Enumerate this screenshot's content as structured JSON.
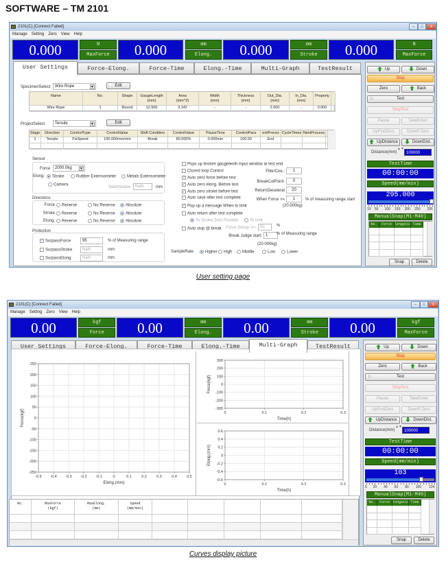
{
  "page_title": "SOFTWARE – TM 2101",
  "windows": [
    {
      "caption": "User setting page",
      "title": "2101(C)  [Connect Failed]",
      "menu": [
        "Manage",
        "Setting",
        "Zero",
        "View",
        "Help"
      ],
      "displays": [
        {
          "value": "0.000",
          "unit": "N",
          "label": "MaxForce"
        },
        {
          "value": "0.000",
          "unit": "mm",
          "label": "Elong."
        },
        {
          "value": "0.000",
          "unit": "mm",
          "label": "Stroke"
        },
        {
          "value": "0.000",
          "unit": "N",
          "label": "MaxForce"
        }
      ],
      "tabs": [
        "User Settings",
        "Force-Elong.",
        "Force-Time",
        "Elong.-Time",
        "Multi-Graph",
        "TestResult"
      ],
      "active_tab": "User Settings",
      "side": {
        "up": "Up",
        "down": "Down",
        "stop": "Stop",
        "zero": "Zero",
        "back": "Back",
        "test": "Test",
        "stop_test": "StopTest",
        "pause": "Pause",
        "take_exten": "TakeExten",
        "up_find_zero": "UpFindZero",
        "down_f_zero": "DownF.Zero",
        "up_distance": "UpDistance",
        "down_dist": "DownDist.",
        "distance_label": "Distance(mm)",
        "distance_value": "100000",
        "test_time_label": "TestTime",
        "test_time": "00:00:00",
        "speed_label": "Speed(mm/min)",
        "speed_value": "295.000",
        "speed_slider_fraction": 1.0,
        "speed_ticks": [
          "10",
          "50",
          "100",
          "150",
          "200",
          "250",
          "295"
        ],
        "snap_title": "ManualSnap(M1-M40)",
        "snap_columns": [
          "No.",
          "Force",
          "longatio",
          "Time"
        ],
        "snap": "Snap",
        "delete": "Delete"
      }
    },
    {
      "caption": "Curves display picture",
      "title": "2101(C)  [Connect Failed]",
      "menu": [
        "Manage",
        "Setting",
        "Zero",
        "View",
        "Help"
      ],
      "displays": [
        {
          "value": "0.00",
          "unit": "kgf",
          "label": "Force"
        },
        {
          "value": "0.00",
          "unit": "mm",
          "label": "Elong."
        },
        {
          "value": "0.00",
          "unit": "mm",
          "label": "Stroke"
        },
        {
          "value": "0.00",
          "unit": "kgf",
          "label": "MaxForce"
        }
      ],
      "tabs": [
        "User Settings",
        "Force-Elong.",
        "Force-Time",
        "Elong.-Time",
        "Multi-Graph",
        "TestResult"
      ],
      "active_tab": "Multi-Graph",
      "side": {
        "up": "Up",
        "down": "Down",
        "stop": "Stop",
        "zero": "Zero",
        "back": "Back",
        "test": "Test",
        "stop_test": "StopTest",
        "pause": "Pause",
        "take_exten": "TakeExten",
        "up_find_zero": "UpFindZero",
        "down_f_zero": "DownF.Zero",
        "up_distance": "UpDistance",
        "down_dist": "DownDist.",
        "distance_label": "Distance(mm)",
        "distance_value": "100000",
        "test_time_label": "TestTime",
        "test_time": "00:00:00",
        "speed_label": "Speed(mm/min)",
        "speed_value": "103",
        "speed_slider_fraction": 0.82,
        "speed_ticks": [
          "5",
          "20",
          "40",
          "60",
          "80",
          "100",
          "124"
        ],
        "snap_title": "ManualSnap(M1-M40)",
        "snap_columns": [
          "No.",
          "Force",
          "longatio",
          "Time"
        ],
        "snap": "Snap",
        "delete": "Delete"
      },
      "result_table": {
        "headers": [
          "No.",
          "MaxForce\n(kgf)",
          "MaxElong.\n(mm)",
          "Speed\n(mm/min)",
          "",
          "",
          "",
          "",
          ""
        ]
      }
    }
  ],
  "user_settings": {
    "specimen_label": "SpecimenSelect",
    "specimen_value": "Wire Rope",
    "edit": "Edit",
    "specimen_table": {
      "headers": [
        "Name",
        "No.",
        "Shape",
        "GaugeLength\n(mm)",
        "Area\n(mm^2)",
        "Width\n(mm)",
        "Thickness\n(mm)",
        "Out_Dia.\n(mm)",
        "In_Dia.\n(mm)",
        "Property"
      ],
      "rows": [
        [
          "Wire Rope",
          "1",
          "Round",
          "12.500",
          "3.142",
          "-",
          "-",
          "2.000",
          "-",
          "0.000"
        ]
      ]
    },
    "project_label": "ProjectSelect",
    "project_value": "Tensile",
    "project_table": {
      "headers": [
        "Stage",
        "Direction",
        "ControlType",
        "ControlValue",
        "Shift Condition",
        "ControlValue",
        "PauseTime",
        "ControlPara",
        "extProces",
        "CycleTimes",
        "NextProcess"
      ],
      "rows": [
        [
          "1",
          "Tensile",
          "FixSpeed",
          "100.000mm/min",
          "Break",
          "80.000%",
          "0.000min",
          "100.00",
          "End",
          "",
          ""
        ]
      ]
    },
    "sensor": {
      "title": "Sensor",
      "force_label": "Force",
      "force_value": "2000.0kg",
      "elong_label": "Elong.",
      "elong_options": [
        "Stroke",
        "Rubber Extensometer",
        "Metals Extensometer",
        "Camera"
      ],
      "elong_selected": "Stroke",
      "switch_label": "SwitchValue",
      "switch_value": "NaN",
      "switch_unit": "mm"
    },
    "directions": {
      "title": "Directions",
      "options": [
        "Reverse",
        "No Reverse",
        "Absolute"
      ],
      "rows": [
        {
          "label": "Force",
          "selected": "Absolute"
        },
        {
          "label": "Stroke",
          "selected": "Absolute"
        },
        {
          "label": "Elong.",
          "selected": "Absolute"
        }
      ]
    },
    "protection": {
      "title": "Protection",
      "rows": [
        {
          "label": "SurpassForce",
          "checked": true,
          "value": "95",
          "unit": "% of Measuring range"
        },
        {
          "label": "SurpassStroke",
          "checked": false,
          "value": "NaN",
          "unit": "mm"
        },
        {
          "label": "SurpassElong.",
          "checked": false,
          "value": "NaN",
          "unit": "mm"
        }
      ]
    },
    "options": [
      {
        "label": "Pops up broken gaugelenth input window at test end",
        "checked": false
      },
      {
        "label": "Closed loop Control",
        "checked": false
      },
      {
        "label": "Auto zero force before test",
        "checked": true
      },
      {
        "label": "Auto zero elong. Before test",
        "checked": true
      },
      {
        "label": "Auto zero stroke before test",
        "checked": true
      },
      {
        "label": "Auto save after test complete",
        "checked": false
      },
      {
        "label": "Pop-up a message When to limit",
        "checked": true
      },
      {
        "label": "Auto return after test complete",
        "checked": false
      }
    ],
    "return_options": [
      "To Stroke Zero Position",
      "To limit"
    ],
    "return_selected": "To Stroke Zero Position",
    "auto_stop": {
      "label": "Auto stop @ break",
      "checked": false,
      "decay_label": "Force Decay >=:",
      "decay_value": "50",
      "decay_unit": "%"
    },
    "params": [
      {
        "label": "FilterCoe.:",
        "value": "1"
      },
      {
        "label": "BreakCutPoint:",
        "value": "0"
      },
      {
        "label": "ReturnDecelerat",
        "value": "20"
      }
    ],
    "when_force": {
      "label": "When Force >=",
      "value": "1",
      "unit": "% of measuring range start",
      "kg": "(20.000kg)"
    },
    "break_judge": {
      "label": "Break Judge start:",
      "value": "1",
      "unit": "% of Measuring range",
      "kg": "(20.000kg)"
    },
    "sample_rate": {
      "label": "SampleRate",
      "options": [
        "Higher",
        "High",
        "Middle",
        "Low",
        "Lower"
      ],
      "selected": "Higher"
    }
  },
  "chart_data": [
    {
      "type": "line",
      "xlabel": "Elong.(mm)",
      "ylabel": "Force(kgf)",
      "xlim": [
        -0.5,
        0.5
      ],
      "ylim": [
        -250,
        250
      ],
      "xticks": [
        -0.5,
        -0.4,
        -0.3,
        -0.2,
        -0.1,
        0,
        0.1,
        0.2,
        0.3,
        0.4,
        0.5
      ],
      "yticks": [
        -250,
        -200,
        -150,
        -100,
        -50,
        0,
        50,
        100,
        150,
        200,
        250
      ],
      "grid": true,
      "series": []
    },
    {
      "type": "line",
      "xlabel": "Time(h)",
      "ylabel": "Force(kgf)",
      "xlim": [
        0,
        0.3
      ],
      "ylim": [
        -300,
        300
      ],
      "xticks": [
        0,
        0.1,
        0.2,
        0.3
      ],
      "yticks": [
        -300,
        -200,
        -100,
        0,
        100,
        200,
        300
      ],
      "grid": true,
      "series": []
    },
    {
      "type": "line",
      "xlabel": "Time(h)",
      "ylabel": "Elong.(mm)",
      "xlim": [
        0,
        0.3
      ],
      "ylim": [
        -0.6,
        0.6
      ],
      "xticks": [
        0,
        0.1,
        0.2,
        0.3
      ],
      "yticks": [
        -0.6,
        -0.4,
        -0.2,
        0,
        0.2,
        0.4,
        0.6
      ],
      "grid": true,
      "series": []
    }
  ],
  "colors": {
    "display_blue": "#0808c8",
    "label_green": "#2e7a12",
    "stop_orange": "#f3b54a",
    "stop_text": "#e03020"
  }
}
